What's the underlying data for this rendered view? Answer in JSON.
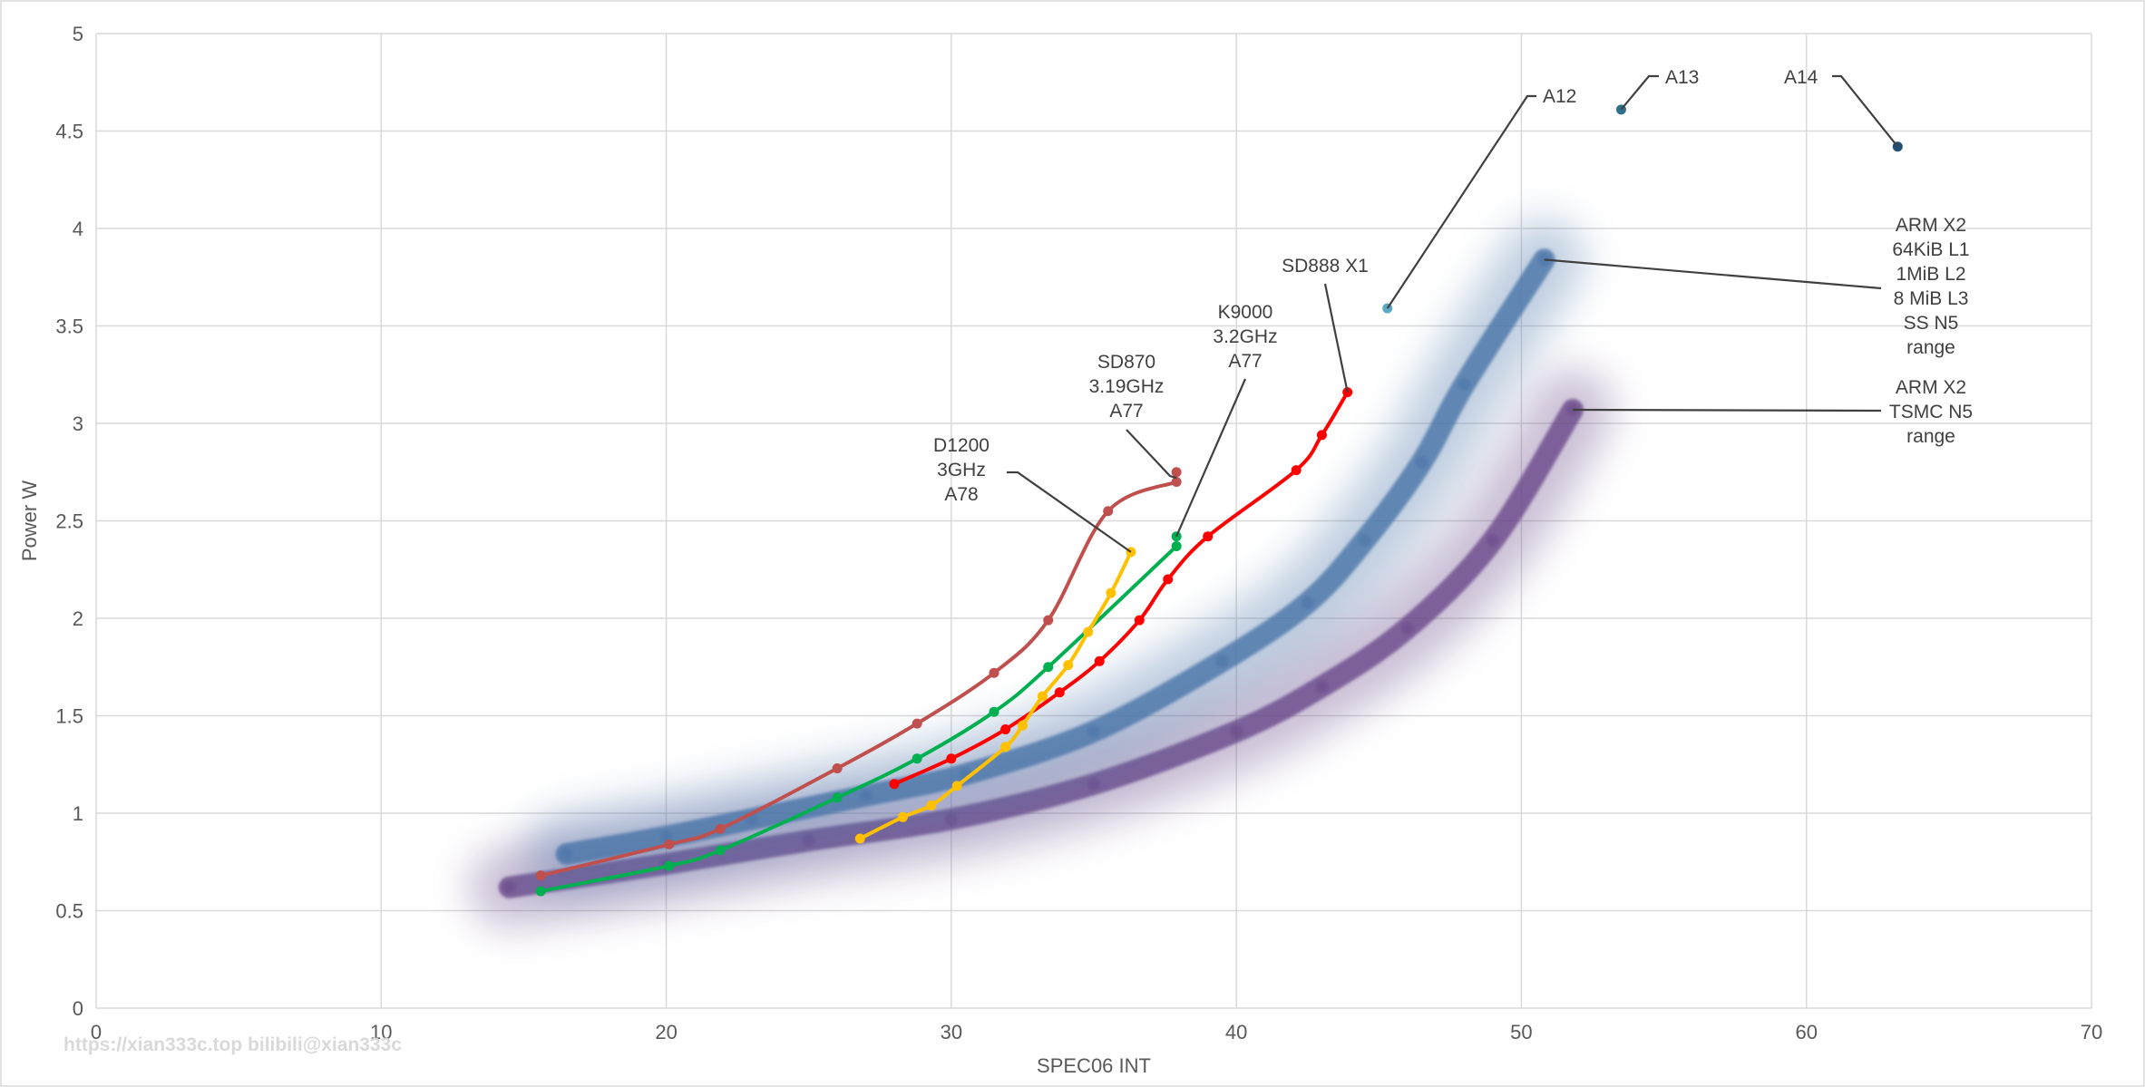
{
  "chart_data": {
    "type": "line",
    "title": "",
    "xlabel": "SPEC06 INT",
    "ylabel": "Power W",
    "xlim": [
      0,
      70
    ],
    "ylim": [
      0,
      5
    ],
    "xticks": [
      0,
      10,
      20,
      30,
      40,
      50,
      60,
      70
    ],
    "yticks": [
      0,
      0.5,
      1,
      1.5,
      2,
      2.5,
      3,
      3.5,
      4,
      4.5,
      5
    ],
    "grid": true,
    "watermark": "https://xian333c.top bilibili@xian333c",
    "bands": [
      {
        "name": "ARM X2 TSMC N5 range",
        "color": "#6b4a8a",
        "points": [
          [
            14.5,
            0.62
          ],
          [
            20,
            0.74
          ],
          [
            25,
            0.86
          ],
          [
            30,
            0.97
          ],
          [
            35,
            1.15
          ],
          [
            40,
            1.42
          ],
          [
            43,
            1.65
          ],
          [
            46,
            1.95
          ],
          [
            49,
            2.4
          ],
          [
            51.8,
            3.07
          ]
        ]
      },
      {
        "name": "ARM X2 64KiB L1 1MiB L2 8 MiB L3 SS N5 range",
        "color": "#4a74a8",
        "points": [
          [
            16.5,
            0.79
          ],
          [
            20,
            0.88
          ],
          [
            23,
            0.97
          ],
          [
            27,
            1.09
          ],
          [
            30.5,
            1.2
          ],
          [
            35,
            1.42
          ],
          [
            39.5,
            1.78
          ],
          [
            42.5,
            2.08
          ],
          [
            44.5,
            2.4
          ],
          [
            46.5,
            2.8
          ],
          [
            48,
            3.2
          ],
          [
            50.8,
            3.84
          ]
        ]
      }
    ],
    "series": [
      {
        "color": "#c0504d",
        "points": [
          [
            15.6,
            0.68
          ],
          [
            20.1,
            0.84
          ],
          [
            21.9,
            0.92
          ],
          [
            26,
            1.23
          ],
          [
            28.8,
            1.46
          ],
          [
            31.5,
            1.72
          ],
          [
            33.4,
            1.99
          ],
          [
            35.5,
            2.55
          ],
          [
            37.9,
            2.7
          ]
        ]
      },
      {
        "color": "#00b050",
        "points": [
          [
            15.6,
            0.6
          ],
          [
            20.1,
            0.73
          ],
          [
            21.9,
            0.81
          ],
          [
            26,
            1.08
          ],
          [
            28.8,
            1.28
          ],
          [
            31.5,
            1.52
          ],
          [
            33.4,
            1.75
          ],
          [
            37.9,
            2.37
          ]
        ]
      },
      {
        "color": "#ff0000",
        "points": [
          [
            28,
            1.15
          ],
          [
            30,
            1.28
          ],
          [
            31.9,
            1.43
          ],
          [
            33.8,
            1.62
          ],
          [
            35.2,
            1.78
          ],
          [
            36.6,
            1.99
          ],
          [
            37.6,
            2.2
          ],
          [
            39,
            2.42
          ],
          [
            42.1,
            2.76
          ],
          [
            43,
            2.94
          ],
          [
            43.9,
            3.16
          ]
        ]
      },
      {
        "color": "#ffc000",
        "points": [
          [
            26.8,
            0.87
          ],
          [
            28.3,
            0.98
          ],
          [
            29.3,
            1.04
          ],
          [
            30.2,
            1.14
          ],
          [
            31.9,
            1.34
          ],
          [
            32.5,
            1.45
          ],
          [
            33.2,
            1.6
          ],
          [
            34.1,
            1.76
          ],
          [
            34.8,
            1.93
          ],
          [
            35.6,
            2.13
          ],
          [
            36.3,
            2.34
          ]
        ]
      }
    ],
    "points": [
      {
        "name": "SD870 3.19GHz A77",
        "x": 37.9,
        "y": 2.75,
        "color": "#c0504d"
      },
      {
        "name": "K9000 3.2GHz A77",
        "x": 37.9,
        "y": 2.42,
        "color": "#00b050"
      },
      {
        "name": "A12",
        "x": 45.3,
        "y": 3.59,
        "color": "#5ba9c4"
      },
      {
        "name": "A13",
        "x": 53.5,
        "y": 4.61,
        "color": "#2e6f8a"
      },
      {
        "name": "A14",
        "x": 63.2,
        "y": 4.42,
        "color": "#1f4e79"
      }
    ],
    "annotations": [
      {
        "lines": [
          "D1200",
          "3GHz",
          "A78"
        ],
        "target": [
          36.3,
          2.34
        ]
      },
      {
        "lines": [
          "SD870",
          "3.19GHz",
          "A77"
        ],
        "target": [
          37.9,
          2.72
        ]
      },
      {
        "lines": [
          "K9000",
          "3.2GHz",
          "A77"
        ],
        "target": [
          37.9,
          2.42
        ]
      },
      {
        "lines": [
          "SD888 X1"
        ],
        "target": [
          43.9,
          3.16
        ]
      },
      {
        "lines": [
          "A12"
        ],
        "target": [
          45.3,
          3.59
        ]
      },
      {
        "lines": [
          "A13"
        ],
        "target": [
          53.5,
          4.61
        ]
      },
      {
        "lines": [
          "A14"
        ],
        "target": [
          63.2,
          4.42
        ]
      },
      {
        "lines": [
          "ARM X2",
          "64KiB L1",
          "1MiB L2",
          "8 MiB L3",
          "SS N5",
          "range"
        ],
        "target": [
          50.8,
          3.84
        ]
      },
      {
        "lines": [
          "ARM X2",
          "TSMC N5",
          "range"
        ],
        "target": [
          51.8,
          3.07
        ]
      }
    ]
  }
}
